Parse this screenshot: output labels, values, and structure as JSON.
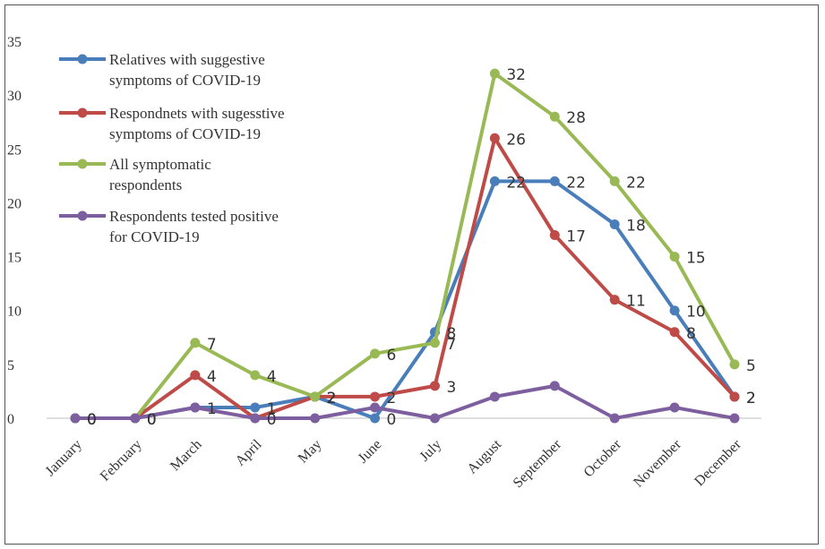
{
  "chart_data": {
    "type": "line",
    "title": "",
    "xlabel": "",
    "ylabel": "",
    "ylim": [
      0,
      35
    ],
    "yticks": [
      0,
      5,
      10,
      15,
      20,
      25,
      30,
      35
    ],
    "grid": false,
    "legend_position": "top-left",
    "categories": [
      "January",
      "February",
      "March",
      "April",
      "May",
      "June",
      "July",
      "August",
      "September",
      "October",
      "November",
      "December"
    ],
    "series": [
      {
        "name_lines": [
          "Relatives with suggestive",
          "symptoms of COVID-19"
        ],
        "color": "#4A7EBB",
        "values": [
          0,
          0,
          1,
          1,
          2,
          0,
          8,
          22,
          22,
          18,
          10,
          2
        ],
        "labels": [
          0,
          0,
          1,
          1,
          2,
          0,
          8,
          22,
          22,
          18,
          10,
          2
        ],
        "show_labels": true
      },
      {
        "name_lines": [
          "Respondnets with sugesstive",
          "symptoms of COVID-19"
        ],
        "color": "#BE4B48",
        "values": [
          0,
          0,
          4,
          0,
          2,
          2,
          3,
          26,
          17,
          11,
          8,
          2
        ],
        "labels": [
          0,
          0,
          4,
          0,
          2,
          2,
          3,
          26,
          17,
          11,
          8,
          2
        ],
        "show_labels": true
      },
      {
        "name_lines": [
          "All symptomatic",
          "respondents"
        ],
        "color": "#98B954",
        "values": [
          0,
          0,
          7,
          4,
          2,
          6,
          7,
          32,
          28,
          22,
          15,
          5
        ],
        "labels": [
          0,
          0,
          7,
          4,
          2,
          6,
          7,
          32,
          28,
          22,
          15,
          5
        ],
        "show_labels": true
      },
      {
        "name_lines": [
          "Respondents tested positive",
          "for COVID-19"
        ],
        "color": "#7D5FA0",
        "values": [
          0,
          0,
          1,
          0,
          0,
          1,
          0,
          2,
          3,
          0,
          1,
          0
        ],
        "show_labels": false
      }
    ]
  }
}
